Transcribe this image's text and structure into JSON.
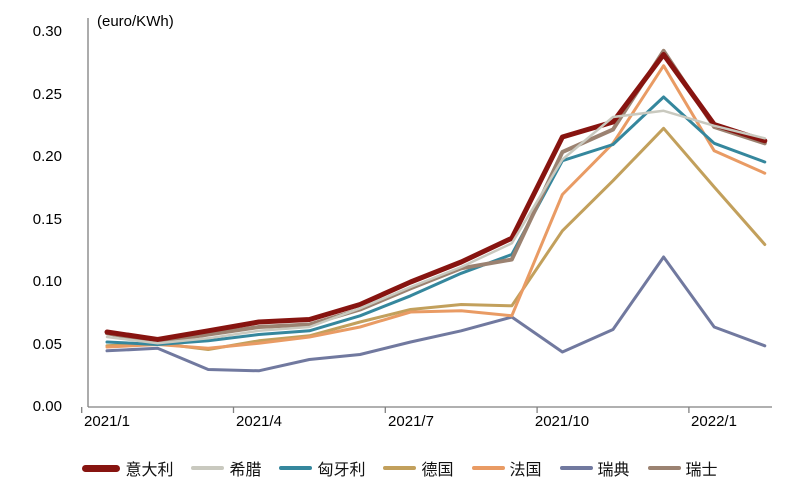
{
  "chart_data": {
    "type": "line",
    "unit_label": "(euro/KWh)",
    "x_categories": [
      "2021/1",
      "2021/2",
      "2021/3",
      "2021/4",
      "2021/5",
      "2021/6",
      "2021/7",
      "2021/8",
      "2021/9",
      "2021/10",
      "2021/11",
      "2021/12",
      "2022/1",
      "2022/2"
    ],
    "x_tick_labels": [
      "2021/1",
      "2021/4",
      "2021/7",
      "2021/10",
      "2022/1"
    ],
    "y_ticks": [
      "0.30",
      "0.25",
      "0.20",
      "0.15",
      "0.10",
      "0.05",
      "0.00"
    ],
    "ylim": [
      0,
      0.3
    ],
    "grid": "off",
    "legend_position": "bottom",
    "axis_color": "#808080",
    "series": [
      {
        "id": "italy",
        "name": "意大利",
        "color": "#871410",
        "width": 5,
        "values": [
          0.06,
          0.054,
          0.061,
          0.068,
          0.07,
          0.082,
          0.1,
          0.116,
          0.135,
          0.216,
          0.228,
          0.282,
          0.226,
          0.213
        ]
      },
      {
        "id": "greece",
        "name": "希腊",
        "color": "#c9c9bf",
        "width": 2.5,
        "values": [
          0.056,
          0.051,
          0.055,
          0.061,
          0.064,
          0.079,
          0.096,
          0.112,
          0.131,
          0.198,
          0.232,
          0.237,
          0.225,
          0.215
        ]
      },
      {
        "id": "hungary",
        "name": "匈牙利",
        "color": "#35879d",
        "width": 3,
        "values": [
          0.052,
          0.05,
          0.053,
          0.058,
          0.061,
          0.073,
          0.089,
          0.107,
          0.122,
          0.197,
          0.21,
          0.248,
          0.211,
          0.196
        ]
      },
      {
        "id": "germany",
        "name": "德国",
        "color": "#c2a05c",
        "width": 3,
        "values": [
          0.049,
          0.051,
          0.046,
          0.053,
          0.057,
          0.068,
          0.078,
          0.082,
          0.081,
          0.141,
          0.181,
          0.223,
          0.176,
          0.13
        ]
      },
      {
        "id": "france",
        "name": "法国",
        "color": "#e99b64",
        "width": 3,
        "values": [
          0.048,
          0.05,
          0.047,
          0.051,
          0.056,
          0.064,
          0.076,
          0.077,
          0.073,
          0.17,
          0.211,
          0.273,
          0.205,
          0.187
        ]
      },
      {
        "id": "sweden",
        "name": "瑞典",
        "color": "#71799f",
        "width": 3,
        "values": [
          0.045,
          0.047,
          0.03,
          0.029,
          0.038,
          0.042,
          0.052,
          0.061,
          0.072,
          0.044,
          0.062,
          0.12,
          0.064,
          0.049
        ]
      },
      {
        "id": "switzerland",
        "name": "瑞士",
        "color": "#9b8271",
        "width": 4,
        "values": [
          0.059,
          0.052,
          0.058,
          0.064,
          0.066,
          0.078,
          0.095,
          0.111,
          0.118,
          0.204,
          0.222,
          0.285,
          0.224,
          0.211
        ]
      }
    ]
  }
}
